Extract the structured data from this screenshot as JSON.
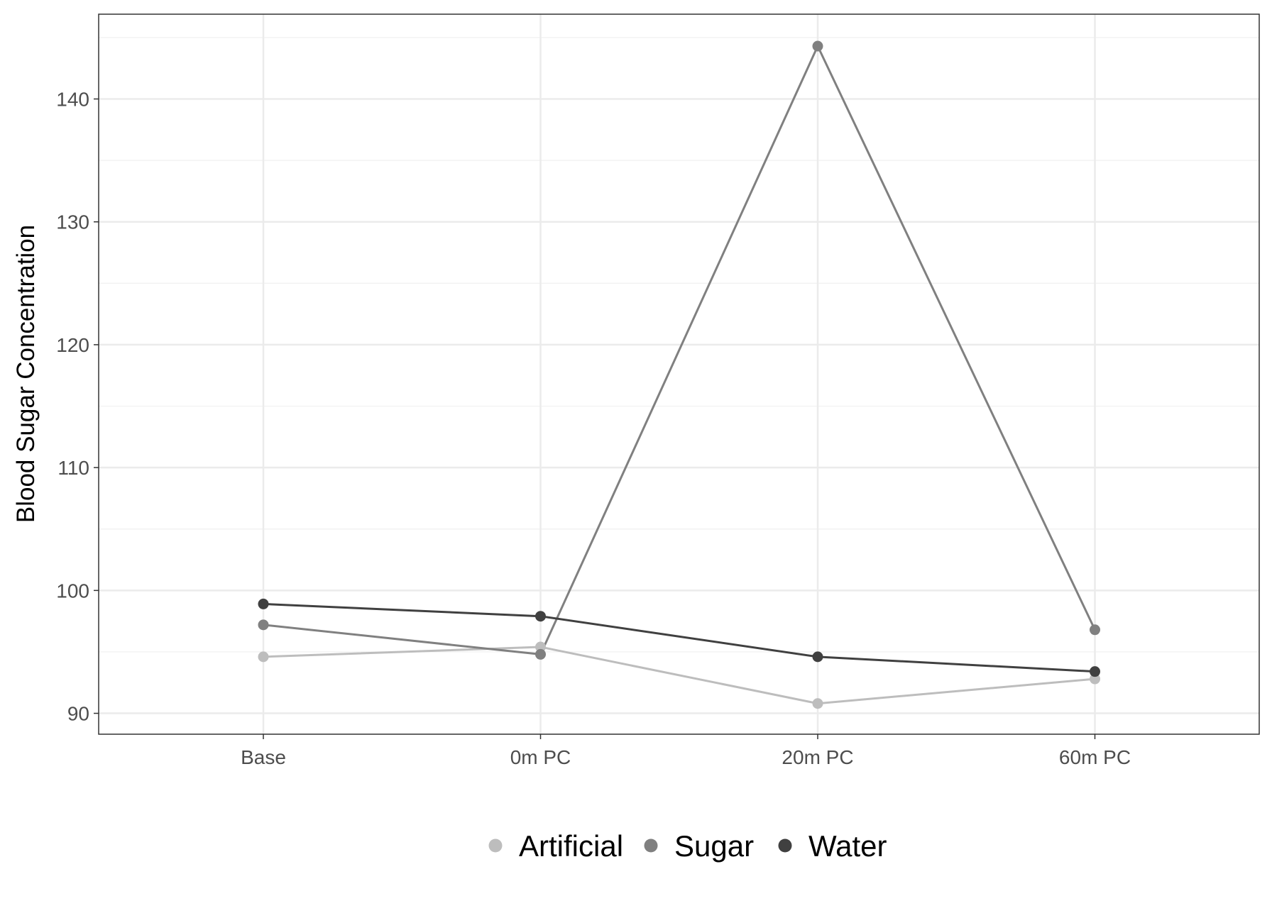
{
  "chart_data": {
    "type": "line",
    "title": "",
    "xlabel": "",
    "ylabel": "Blood Sugar Concentration",
    "categories": [
      "Base",
      "0m PC",
      "20m PC",
      "60m PC"
    ],
    "ylim": [
      88.3,
      146.9
    ],
    "yticks": [
      90,
      100,
      110,
      120,
      130,
      140
    ],
    "grid": true,
    "legend_position": "bottom",
    "series": [
      {
        "name": "Artificial",
        "color": "#bdbdbd",
        "values": [
          94.6,
          95.4,
          90.8,
          92.8
        ]
      },
      {
        "name": "Sugar",
        "color": "#808080",
        "values": [
          97.2,
          94.8,
          144.3,
          96.8
        ]
      },
      {
        "name": "Water",
        "color": "#404040",
        "values": [
          98.9,
          97.9,
          94.6,
          93.4
        ]
      }
    ]
  }
}
